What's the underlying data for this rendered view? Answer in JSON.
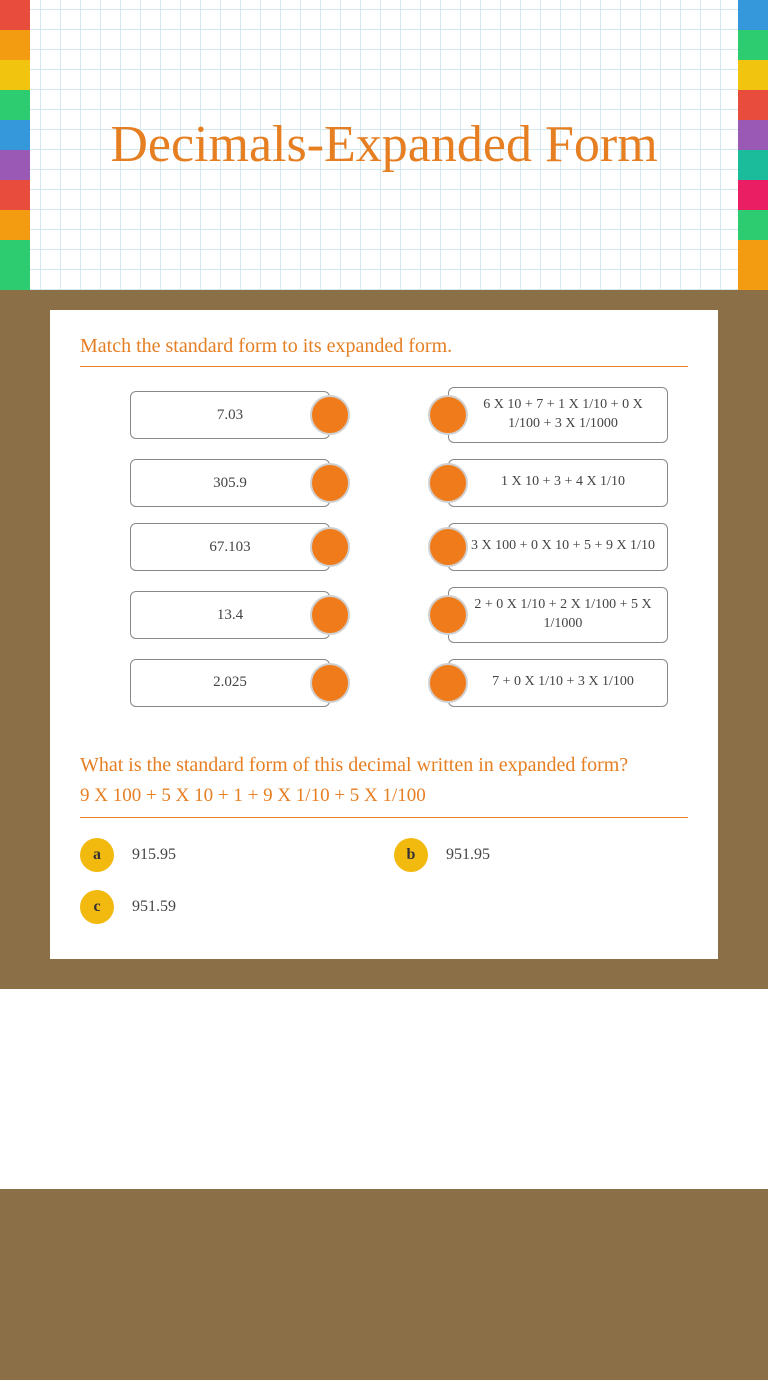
{
  "title": "Decimals-Expanded Form",
  "colors": {
    "accent": "#e67e22",
    "dot": "#f07b1a",
    "mc_circle": "#f2b90f",
    "page_bg": "#8b6f47",
    "card_bg": "#ffffff",
    "text": "#444444"
  },
  "matching": {
    "prompt": "Match the standard form to its expanded form.",
    "left": [
      "7.03",
      "305.9",
      "67.103",
      "13.4",
      "2.025"
    ],
    "right": [
      "6 X 10 + 7 + 1 X 1/10 + 0 X 1/100 + 3 X 1/1000",
      "1 X 10 + 3 + 4 X 1/10",
      "3 X 100 + 0 X 10 + 5 + 9 X 1/10",
      "2 + 0 X 1/10 + 2 X 1/100 + 5 X 1/1000",
      "7 + 0 X 1/10 + 3 X 1/100"
    ]
  },
  "mc": {
    "prompt": "What is the  standard form of this decimal written in expanded form?",
    "expression": " 9 X 100 + 5 X 10 + 1  + 9 X 1/10 + 5 X 1/100",
    "options": [
      {
        "letter": "a",
        "text": "915.95"
      },
      {
        "letter": "b",
        "text": "951.95"
      },
      {
        "letter": "c",
        "text": "951.59"
      }
    ]
  }
}
